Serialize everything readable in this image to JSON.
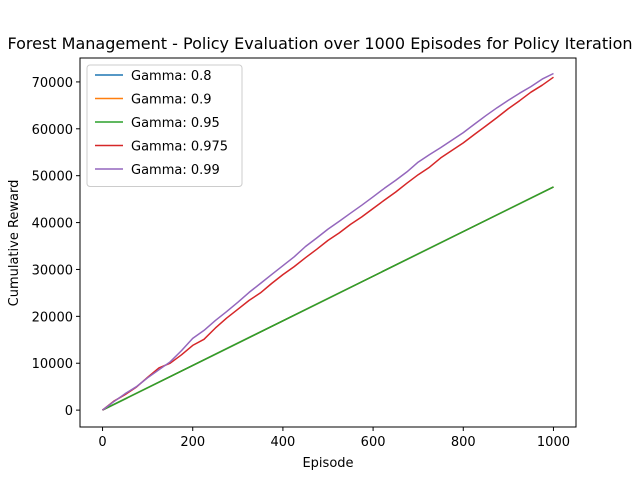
{
  "chart_data": {
    "type": "line",
    "title": "Forest Management - Policy Evaluation over 1000 Episodes for Policy Iteration",
    "xlabel": "Episode",
    "ylabel": "Cumulative Reward",
    "xlim": [
      -50,
      1050
    ],
    "ylim": [
      -3600,
      75100
    ],
    "xticks": [
      0,
      200,
      400,
      600,
      800,
      1000
    ],
    "yticks": [
      0,
      10000,
      20000,
      30000,
      40000,
      50000,
      60000,
      70000
    ],
    "legend_position": "top-left",
    "grid": false,
    "series": [
      {
        "name": "Gamma: 0.8",
        "color": "#1f77b4",
        "x": [
          0,
          1000
        ],
        "y": [
          0,
          47600
        ]
      },
      {
        "name": "Gamma: 0.9",
        "color": "#ff7f0e",
        "x": [
          0,
          1000
        ],
        "y": [
          0,
          47600
        ]
      },
      {
        "name": "Gamma: 0.95",
        "color": "#2ca02c",
        "x": [
          0,
          1000
        ],
        "y": [
          0,
          47600
        ]
      },
      {
        "name": "Gamma: 0.975",
        "color": "#d62728",
        "x": [
          0,
          25,
          50,
          75,
          100,
          125,
          150,
          175,
          200,
          225,
          250,
          275,
          300,
          325,
          350,
          375,
          400,
          425,
          450,
          475,
          500,
          525,
          550,
          575,
          600,
          625,
          650,
          675,
          700,
          725,
          750,
          775,
          800,
          825,
          850,
          875,
          900,
          925,
          950,
          975,
          1000
        ],
        "y": [
          0,
          1900,
          3300,
          4900,
          7000,
          9000,
          10000,
          11800,
          13800,
          15100,
          17500,
          19600,
          21500,
          23400,
          25000,
          27000,
          28900,
          30600,
          32500,
          34300,
          36200,
          37800,
          39600,
          41200,
          43000,
          44800,
          46500,
          48400,
          50200,
          51800,
          53800,
          55400,
          57000,
          58800,
          60600,
          62400,
          64300,
          66000,
          67800,
          69300,
          71000
        ]
      },
      {
        "name": "Gamma: 0.99",
        "color": "#9467bd",
        "x": [
          0,
          25,
          50,
          75,
          100,
          125,
          150,
          175,
          200,
          225,
          250,
          275,
          300,
          325,
          350,
          375,
          400,
          425,
          450,
          475,
          500,
          525,
          550,
          575,
          600,
          625,
          650,
          675,
          700,
          725,
          750,
          775,
          800,
          825,
          850,
          875,
          900,
          925,
          950,
          975,
          1000
        ],
        "y": [
          0,
          1800,
          3500,
          5000,
          6900,
          8600,
          10300,
          12700,
          15300,
          17000,
          19100,
          21000,
          23000,
          25100,
          27000,
          28900,
          30800,
          32700,
          34900,
          36700,
          38600,
          40300,
          42000,
          43700,
          45500,
          47300,
          49000,
          50800,
          52900,
          54500,
          56000,
          57600,
          59200,
          61000,
          62800,
          64500,
          66100,
          67600,
          69000,
          70600,
          71800
        ]
      }
    ]
  }
}
